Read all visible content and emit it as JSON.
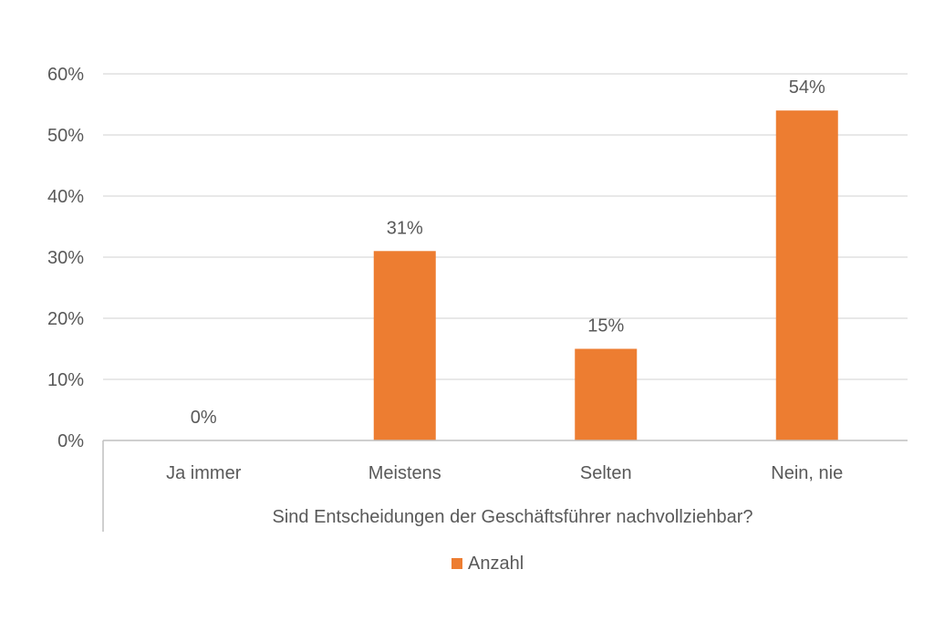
{
  "chart_data": {
    "type": "bar",
    "categories": [
      "Ja immer",
      "Meistens",
      "Selten",
      "Nein, nie"
    ],
    "series": [
      {
        "name": "Anzahl",
        "values": [
          0,
          31,
          15,
          54
        ]
      }
    ],
    "data_labels": [
      "0%",
      "31%",
      "15%",
      "54%"
    ],
    "y_ticks": [
      "0%",
      "10%",
      "20%",
      "30%",
      "40%",
      "50%",
      "60%"
    ],
    "ylim": [
      0,
      60
    ],
    "xlabel": "Sind Entscheidungen der Geschäftsführer nachvollziehbar?",
    "ylabel": "",
    "title": "",
    "grid": true,
    "legend": {
      "position": "bottom",
      "entries": [
        "Anzahl"
      ]
    },
    "colors": {
      "bar": "#ED7D31",
      "grid": "#d9d9d9",
      "axis": "#bfbfbf",
      "text": "#595959"
    }
  }
}
